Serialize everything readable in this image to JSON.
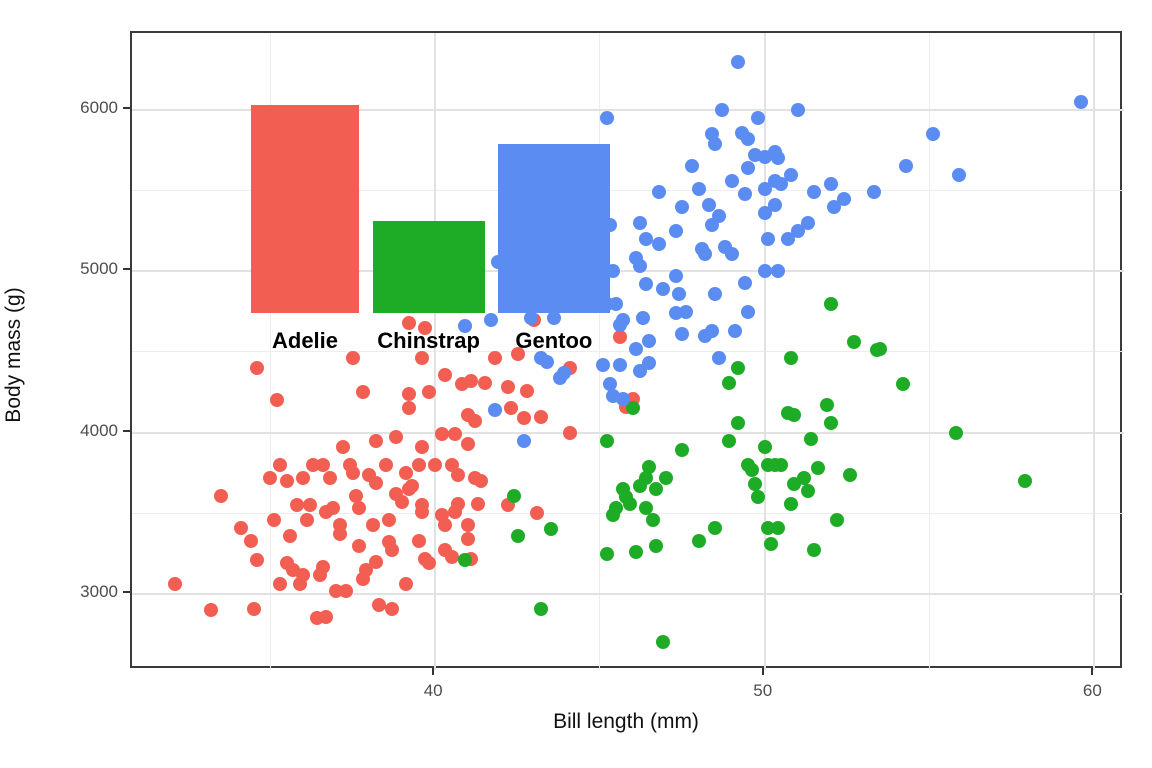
{
  "figure": {
    "x_axis_title": "Bill length (mm)",
    "y_axis_title": "Body mass (g)"
  },
  "chart_data": {
    "type": "scatter",
    "title": "",
    "xlabel": "Bill length (mm)",
    "ylabel": "Body mass (g)",
    "xlim": [
      30.8,
      60.9
    ],
    "ylim": [
      2529,
      6477
    ],
    "grid": "major+minor",
    "legend_position": "inset-bar-labels",
    "x_major_ticks": [
      40,
      50,
      60
    ],
    "x_minor_gridlines": [
      35,
      45,
      55
    ],
    "y_major_ticks": [
      3000,
      4000,
      5000,
      6000
    ],
    "y_minor_gridlines": [
      3500,
      4500,
      5500
    ],
    "overlay_bars": [
      {
        "label": "Adelie",
        "color": "#F25F52",
        "x_start": 34.4,
        "x_end": 37.7,
        "y_base": 4740,
        "y_top": 6030
      },
      {
        "label": "Chinstrap",
        "color": "#1EAC27",
        "x_start": 38.1,
        "x_end": 41.5,
        "y_base": 4740,
        "y_top": 5310
      },
      {
        "label": "Gentoo",
        "color": "#5A8CF2",
        "x_start": 41.9,
        "x_end": 45.3,
        "y_base": 4740,
        "y_top": 5790
      }
    ],
    "bar_label_y": 4570,
    "series": [
      {
        "name": "Adelie",
        "color": "#F25F52",
        "points": [
          [
            34.6,
            4400
          ],
          [
            35.2,
            4200
          ],
          [
            37.5,
            4460
          ],
          [
            37.8,
            4250
          ],
          [
            39.2,
            4680
          ],
          [
            39.7,
            4650
          ],
          [
            39.6,
            4460
          ],
          [
            39.2,
            4240
          ],
          [
            39.8,
            4250
          ],
          [
            39.2,
            4150
          ],
          [
            40.3,
            4360
          ],
          [
            40.8,
            4300
          ],
          [
            41.1,
            4320
          ],
          [
            41.5,
            4310
          ],
          [
            41.0,
            4110
          ],
          [
            41.2,
            4070
          ],
          [
            40.2,
            3990
          ],
          [
            40.6,
            3990
          ],
          [
            41.0,
            3930
          ],
          [
            38.2,
            3950
          ],
          [
            38.8,
            3970
          ],
          [
            39.6,
            3910
          ],
          [
            37.2,
            3910
          ],
          [
            41.8,
            4460
          ],
          [
            43.0,
            4700
          ],
          [
            45.6,
            4590
          ],
          [
            42.5,
            4490
          ],
          [
            44.1,
            4400
          ],
          [
            42.2,
            4280
          ],
          [
            42.8,
            4260
          ],
          [
            42.3,
            4150
          ],
          [
            43.2,
            4100
          ],
          [
            42.7,
            4090
          ],
          [
            44.1,
            4000
          ],
          [
            46.0,
            4210
          ],
          [
            45.8,
            4160
          ],
          [
            42.2,
            3550
          ],
          [
            43.1,
            3500
          ],
          [
            33.5,
            3610
          ],
          [
            32.1,
            3060
          ],
          [
            33.2,
            2900
          ],
          [
            34.5,
            2910
          ],
          [
            34.1,
            3410
          ],
          [
            34.4,
            3330
          ],
          [
            34.6,
            3210
          ],
          [
            35.0,
            3720
          ],
          [
            35.1,
            3460
          ],
          [
            35.3,
            3060
          ],
          [
            35.3,
            3800
          ],
          [
            35.5,
            3700
          ],
          [
            35.6,
            3360
          ],
          [
            35.8,
            3550
          ],
          [
            35.5,
            3190
          ],
          [
            35.7,
            3150
          ],
          [
            36.0,
            3720
          ],
          [
            36.1,
            3460
          ],
          [
            36.0,
            3120
          ],
          [
            35.9,
            3060
          ],
          [
            36.2,
            3550
          ],
          [
            36.3,
            3800
          ],
          [
            36.5,
            3120
          ],
          [
            36.6,
            3170
          ],
          [
            36.4,
            2850
          ],
          [
            36.7,
            2860
          ],
          [
            36.6,
            3800
          ],
          [
            36.8,
            3720
          ],
          [
            36.7,
            3510
          ],
          [
            36.9,
            3530
          ],
          [
            37.1,
            3430
          ],
          [
            37.1,
            3370
          ],
          [
            37.0,
            3020
          ],
          [
            37.3,
            3020
          ],
          [
            37.4,
            3800
          ],
          [
            37.5,
            3750
          ],
          [
            37.6,
            3610
          ],
          [
            37.7,
            3530
          ],
          [
            37.7,
            3300
          ],
          [
            37.8,
            3090
          ],
          [
            37.9,
            3150
          ],
          [
            38.0,
            3740
          ],
          [
            38.1,
            3430
          ],
          [
            38.2,
            3200
          ],
          [
            38.2,
            3690
          ],
          [
            38.3,
            2930
          ],
          [
            38.5,
            3800
          ],
          [
            38.6,
            3320
          ],
          [
            38.6,
            3460
          ],
          [
            38.7,
            3270
          ],
          [
            38.7,
            2910
          ],
          [
            38.8,
            3620
          ],
          [
            39.0,
            3570
          ],
          [
            39.1,
            3060
          ],
          [
            39.1,
            3750
          ],
          [
            39.2,
            3650
          ],
          [
            39.3,
            3670
          ],
          [
            39.5,
            3800
          ],
          [
            39.5,
            3330
          ],
          [
            39.6,
            3550
          ],
          [
            39.6,
            3510
          ],
          [
            39.7,
            3220
          ],
          [
            39.8,
            3190
          ],
          [
            40.0,
            3800
          ],
          [
            40.2,
            3490
          ],
          [
            40.3,
            3430
          ],
          [
            40.5,
            3800
          ],
          [
            40.7,
            3740
          ],
          [
            40.7,
            3560
          ],
          [
            40.6,
            3510
          ],
          [
            41.0,
            3430
          ],
          [
            41.0,
            3340
          ],
          [
            41.1,
            3220
          ],
          [
            40.3,
            3270
          ],
          [
            40.5,
            3230
          ],
          [
            41.2,
            3720
          ],
          [
            41.4,
            3700
          ],
          [
            41.3,
            3560
          ]
        ]
      },
      {
        "name": "Chinstrap",
        "color": "#1EAC27",
        "points": [
          [
            52.0,
            4800
          ],
          [
            52.7,
            4560
          ],
          [
            53.4,
            4510
          ],
          [
            50.8,
            4460
          ],
          [
            49.2,
            4400
          ],
          [
            48.9,
            4310
          ],
          [
            46.0,
            4150
          ],
          [
            49.2,
            4060
          ],
          [
            50.7,
            4120
          ],
          [
            50.9,
            4110
          ],
          [
            51.9,
            4170
          ],
          [
            52.0,
            4060
          ],
          [
            45.2,
            3950
          ],
          [
            48.9,
            3950
          ],
          [
            50.0,
            3910
          ],
          [
            51.4,
            3960
          ],
          [
            47.5,
            3890
          ],
          [
            53.5,
            4520
          ],
          [
            54.2,
            4300
          ],
          [
            55.8,
            4000
          ],
          [
            42.4,
            3610
          ],
          [
            43.5,
            3400
          ],
          [
            42.5,
            3360
          ],
          [
            43.2,
            2910
          ],
          [
            45.2,
            3250
          ],
          [
            45.5,
            3530
          ],
          [
            45.4,
            3490
          ],
          [
            45.7,
            3650
          ],
          [
            45.8,
            3600
          ],
          [
            45.9,
            3560
          ],
          [
            46.1,
            3260
          ],
          [
            46.2,
            3670
          ],
          [
            46.4,
            3720
          ],
          [
            46.5,
            3790
          ],
          [
            46.4,
            3530
          ],
          [
            46.6,
            3460
          ],
          [
            46.7,
            3300
          ],
          [
            46.7,
            3650
          ],
          [
            47.0,
            3720
          ],
          [
            46.9,
            2700
          ],
          [
            48.0,
            3330
          ],
          [
            48.5,
            3410
          ],
          [
            49.5,
            3800
          ],
          [
            49.6,
            3770
          ],
          [
            49.7,
            3680
          ],
          [
            49.8,
            3600
          ],
          [
            50.1,
            3800
          ],
          [
            50.3,
            3800
          ],
          [
            50.5,
            3800
          ],
          [
            50.1,
            3410
          ],
          [
            50.4,
            3410
          ],
          [
            50.2,
            3310
          ],
          [
            50.8,
            3560
          ],
          [
            50.9,
            3680
          ],
          [
            51.2,
            3720
          ],
          [
            51.3,
            3640
          ],
          [
            51.5,
            3270
          ],
          [
            51.6,
            3780
          ],
          [
            52.2,
            3460
          ],
          [
            52.6,
            3740
          ],
          [
            57.9,
            3700
          ],
          [
            40.9,
            3210
          ]
        ]
      },
      {
        "name": "Gentoo",
        "color": "#5A8CF2",
        "points": [
          [
            49.2,
            6300
          ],
          [
            45.2,
            5950
          ],
          [
            48.7,
            6000
          ],
          [
            51.0,
            6000
          ],
          [
            49.8,
            5950
          ],
          [
            48.4,
            5850
          ],
          [
            49.3,
            5860
          ],
          [
            49.5,
            5820
          ],
          [
            48.5,
            5790
          ],
          [
            50.3,
            5740
          ],
          [
            49.7,
            5720
          ],
          [
            50.0,
            5710
          ],
          [
            50.4,
            5700
          ],
          [
            47.8,
            5650
          ],
          [
            49.5,
            5640
          ],
          [
            49.0,
            5560
          ],
          [
            50.3,
            5560
          ],
          [
            46.8,
            5490
          ],
          [
            50.0,
            5510
          ],
          [
            48.0,
            5510
          ],
          [
            49.4,
            5480
          ],
          [
            47.5,
            5400
          ],
          [
            48.3,
            5410
          ],
          [
            50.3,
            5410
          ],
          [
            48.6,
            5340
          ],
          [
            50.0,
            5360
          ],
          [
            46.2,
            5300
          ],
          [
            48.4,
            5290
          ],
          [
            47.3,
            5250
          ],
          [
            46.4,
            5200
          ],
          [
            46.8,
            5170
          ],
          [
            50.1,
            5200
          ],
          [
            48.8,
            5150
          ],
          [
            48.1,
            5140
          ],
          [
            59.6,
            6050
          ],
          [
            55.1,
            5850
          ],
          [
            54.3,
            5650
          ],
          [
            55.9,
            5600
          ],
          [
            50.8,
            5600
          ],
          [
            50.5,
            5540
          ],
          [
            51.5,
            5490
          ],
          [
            52.0,
            5540
          ],
          [
            52.4,
            5450
          ],
          [
            52.1,
            5400
          ],
          [
            53.3,
            5490
          ],
          [
            51.3,
            5300
          ],
          [
            51.0,
            5250
          ],
          [
            50.7,
            5200
          ],
          [
            45.4,
            5000
          ],
          [
            46.1,
            5080
          ],
          [
            46.2,
            5030
          ],
          [
            46.4,
            4920
          ],
          [
            46.9,
            4890
          ],
          [
            47.3,
            4970
          ],
          [
            47.4,
            4860
          ],
          [
            48.2,
            5110
          ],
          [
            48.5,
            4860
          ],
          [
            49.0,
            5110
          ],
          [
            49.4,
            4930
          ],
          [
            50.0,
            5000
          ],
          [
            50.4,
            5000
          ],
          [
            49.5,
            4750
          ],
          [
            47.3,
            4740
          ],
          [
            47.6,
            4750
          ],
          [
            47.5,
            4610
          ],
          [
            48.2,
            4600
          ],
          [
            48.4,
            4630
          ],
          [
            49.1,
            4630
          ],
          [
            48.6,
            4460
          ],
          [
            45.2,
            4800
          ],
          [
            45.5,
            4800
          ],
          [
            45.7,
            4700
          ],
          [
            46.3,
            4710
          ],
          [
            45.6,
            4670
          ],
          [
            46.1,
            4520
          ],
          [
            46.5,
            4570
          ],
          [
            45.1,
            4420
          ],
          [
            45.6,
            4420
          ],
          [
            46.2,
            4380
          ],
          [
            46.5,
            4430
          ],
          [
            45.3,
            4300
          ],
          [
            45.4,
            4230
          ],
          [
            45.7,
            4210
          ],
          [
            43.2,
            4460
          ],
          [
            43.4,
            4440
          ],
          [
            43.8,
            4340
          ],
          [
            43.9,
            4370
          ],
          [
            42.7,
            3950
          ],
          [
            41.8,
            4140
          ],
          [
            40.9,
            4660
          ],
          [
            41.7,
            4700
          ],
          [
            41.9,
            5060
          ],
          [
            43.4,
            4790
          ],
          [
            43.6,
            4710
          ],
          [
            42.9,
            4710
          ],
          [
            45.3,
            5290
          ],
          [
            45.2,
            5000
          ],
          [
            44.9,
            4860
          ]
        ]
      }
    ]
  }
}
